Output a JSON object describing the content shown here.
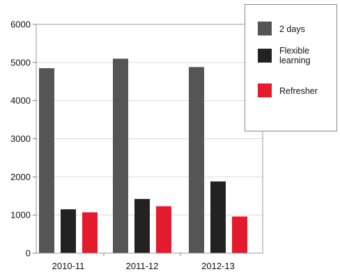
{
  "chart_data": {
    "type": "bar",
    "categories": [
      "2010-11",
      "2011-12",
      "2012-13"
    ],
    "series": [
      {
        "name": "2 days",
        "values": [
          4850,
          5100,
          4880
        ],
        "color": "#555555"
      },
      {
        "name": "Flexible learning",
        "values": [
          1150,
          1420,
          1880
        ],
        "color": "#222222"
      },
      {
        "name": "Refresher",
        "values": [
          1070,
          1230,
          960
        ],
        "color": "#e31b2c"
      }
    ],
    "legend_lines": {
      "2 days": [
        "2 days"
      ],
      "Flexible learning": [
        "Flexible",
        "learning"
      ],
      "Refresher": [
        "Refresher"
      ]
    },
    "y_ticks": [
      0,
      1000,
      2000,
      3000,
      4000,
      5000,
      6000
    ],
    "ylim": [
      0,
      6000
    ],
    "title": "",
    "xlabel": "",
    "ylabel": "",
    "grid": true,
    "legend_position": "top-right"
  }
}
